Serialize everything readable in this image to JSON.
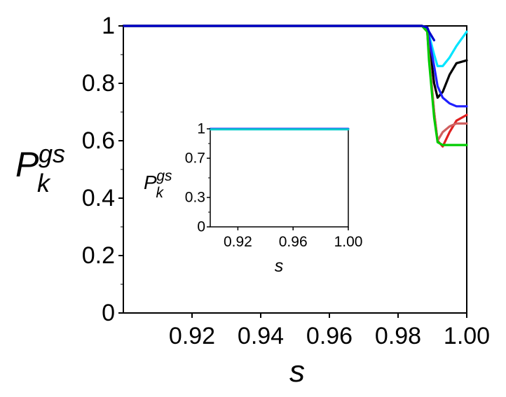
{
  "chart_data": [
    {
      "type": "line",
      "xlabel": "s",
      "ylabel": {
        "main": "P",
        "sup": "gs",
        "sub": "k"
      },
      "xlim": [
        0.9,
        1.0
      ],
      "ylim": [
        0,
        1.0
      ],
      "x_ticks": [
        {
          "value": 0.92,
          "label": "0.92"
        },
        {
          "value": 0.94,
          "label": "0.94"
        },
        {
          "value": 0.96,
          "label": "0.96"
        },
        {
          "value": 0.98,
          "label": "0.98"
        },
        {
          "value": 1.0,
          "label": "1.00"
        }
      ],
      "y_ticks": [
        {
          "value": 0,
          "label": "0"
        },
        {
          "value": 0.2,
          "label": "0.2"
        },
        {
          "value": 0.4,
          "label": "0.4"
        },
        {
          "value": 0.6,
          "label": "0.6"
        },
        {
          "value": 0.8,
          "label": "0.8"
        },
        {
          "value": 1.0,
          "label": "1"
        }
      ],
      "grid": false,
      "series": [
        {
          "color": "#00e5ff",
          "x": [
            0.9,
            0.987,
            0.9885,
            0.989,
            0.9905,
            0.9915,
            0.993,
            0.995,
            0.997,
            1.0
          ],
          "y": [
            1,
            1,
            0.99,
            0.97,
            0.9,
            0.86,
            0.86,
            0.89,
            0.93,
            0.98
          ]
        },
        {
          "color": "#000000",
          "x": [
            0.9,
            0.987,
            0.9885,
            0.989,
            0.9905,
            0.9915,
            0.993,
            0.995,
            0.997,
            1.0
          ],
          "y": [
            1,
            1,
            0.99,
            0.95,
            0.8,
            0.75,
            0.77,
            0.83,
            0.87,
            0.88
          ]
        },
        {
          "color": "#2020ff",
          "x": [
            0.9,
            0.987,
            0.9885,
            0.989,
            0.9905,
            0.9915,
            0.993,
            0.995,
            0.997,
            1.0
          ],
          "y": [
            1,
            1,
            0.99,
            0.96,
            0.86,
            0.79,
            0.75,
            0.73,
            0.72,
            0.72
          ]
        },
        {
          "color": "#e02020",
          "x": [
            0.9,
            0.987,
            0.9885,
            0.989,
            0.9905,
            0.9915,
            0.993,
            0.995,
            0.997,
            1.0
          ],
          "y": [
            1,
            1,
            0.98,
            0.9,
            0.7,
            0.6,
            0.58,
            0.63,
            0.67,
            0.69
          ]
        },
        {
          "color": "#d06060",
          "x": [
            0.9,
            0.987,
            0.9885,
            0.989,
            0.9905,
            0.9915,
            0.993,
            0.995,
            0.997,
            1.0
          ],
          "y": [
            1,
            1,
            0.98,
            0.9,
            0.7,
            0.6,
            0.63,
            0.65,
            0.66,
            0.66
          ]
        },
        {
          "color": "#00cc00",
          "x": [
            0.9,
            0.987,
            0.9885,
            0.989,
            0.9905,
            0.9915,
            0.993,
            0.995,
            0.997,
            1.0
          ],
          "y": [
            1,
            1,
            0.98,
            0.88,
            0.68,
            0.595,
            0.585,
            0.585,
            0.585,
            0.585
          ]
        },
        {
          "color": "#0000cc",
          "x": [
            0.9,
            0.987,
            0.9885,
            0.989,
            0.9905
          ],
          "y": [
            1,
            1,
            0.995,
            0.98,
            0.95
          ]
        }
      ]
    },
    {
      "type": "line",
      "xlabel": "s",
      "ylabel": {
        "main": "P",
        "sup": "gs",
        "sub": "k"
      },
      "xlim": [
        0.9,
        1.0
      ],
      "ylim": [
        0,
        1.0
      ],
      "x_ticks": [
        {
          "value": 0.92,
          "label": "0.92"
        },
        {
          "value": 0.96,
          "label": "0.96"
        },
        {
          "value": 1.0,
          "label": "1.00"
        }
      ],
      "y_ticks": [
        {
          "value": 0,
          "label": "0"
        },
        {
          "value": 0.3,
          "label": "0.3"
        },
        {
          "value": 0.7,
          "label": "0.7"
        },
        {
          "value": 1.0,
          "label": "1"
        }
      ],
      "grid": false,
      "series": [
        {
          "color": "#2020ff",
          "x": [
            0.9,
            1.0
          ],
          "y": [
            1,
            1
          ]
        },
        {
          "color": "#00cccc",
          "x": [
            0.9,
            1.0
          ],
          "y": [
            0.995,
            0.995
          ]
        }
      ]
    }
  ]
}
